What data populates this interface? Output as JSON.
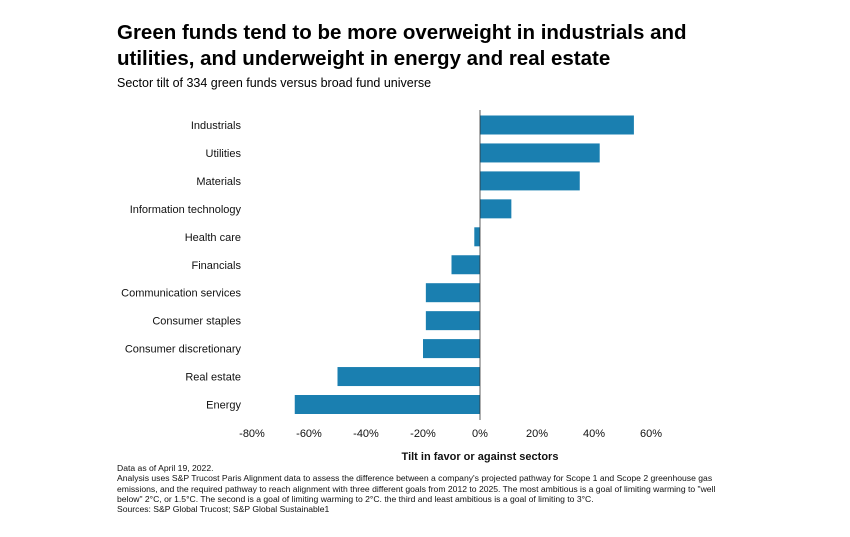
{
  "title": "Green funds tend to be more overweight in industrials and utilities, and underweight in energy and real estate",
  "subtitle": "Sector tilt of 334 green funds versus broad fund universe",
  "chart_data": {
    "type": "bar",
    "orientation": "horizontal",
    "categories": [
      "Industrials",
      "Utilities",
      "Materials",
      "Information technology",
      "Health care",
      "Financials",
      "Communication services",
      "Consumer staples",
      "Consumer discretionary",
      "Real estate",
      "Energy"
    ],
    "values": [
      54,
      42,
      35,
      11,
      -2,
      -10,
      -19,
      -19,
      -20,
      -50,
      -65
    ],
    "xlabel": "Tilt in favor or against sectors",
    "ylabel": "",
    "xlim": [
      -80,
      60
    ],
    "xticks": [
      -80,
      -60,
      -40,
      -20,
      0,
      20,
      40,
      60
    ],
    "xtick_labels": [
      "-80%",
      "-60%",
      "-40%",
      "-20%",
      "0%",
      "20%",
      "40%",
      "60%"
    ],
    "grid": false,
    "bar_color": "#1a7fb0"
  },
  "notes": [
    "Data as of April 19, 2022.",
    "Analysis uses S&P Trucost Paris Alignment data to assess the difference between a company's projected pathway for Scope 1 and Scope 2 greenhouse gas emissions, and the required pathway to reach alignment with three different goals from 2012 to 2025. The most ambitious is a goal of limiting warming to \"well below\" 2°C, or 1.5°C. The second is a goal of limiting warming to 2°C. the third and least ambitious is a goal of limiting to 3°C.",
    "Sources: S&P Global Trucost; S&P Global Sustainable1"
  ]
}
